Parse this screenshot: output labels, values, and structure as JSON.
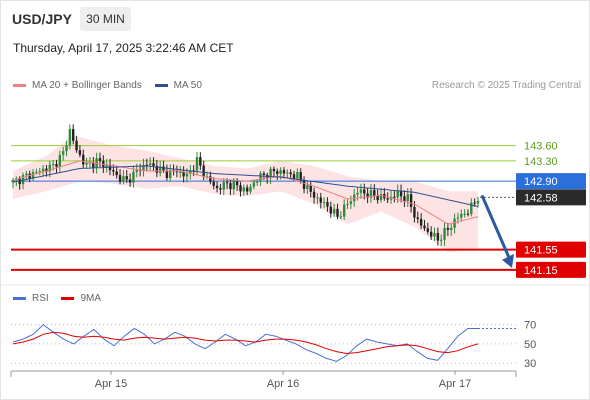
{
  "header": {
    "symbol": "USD/JPY",
    "timeframe": "30 MIN",
    "datetime": "Thursday, April 17, 2025 3:22:46 AM CET"
  },
  "legend": {
    "ma20": "MA 20 + Bollinger Bands",
    "ma50": "MA 50",
    "attribution": "Research © 2025 Trading Central"
  },
  "rsi_legend": {
    "rsi": "RSI",
    "ma9": "9MA"
  },
  "colors": {
    "ma20": "#f08080",
    "ma50": "#2b4f8f",
    "band_fill": "#fde3e3",
    "candle_up": "#2e8b3a",
    "candle_down": "#222222",
    "resistance_lines": "#9acd32",
    "pivot_line": "#2a6fdb",
    "support_lines": "#e00000",
    "rsi_line": "#4a6fd8",
    "rsi_ma": "#e00000",
    "arrow": "#2b5aa0"
  },
  "chart_data": [
    {
      "type": "candlestick",
      "title": "USD/JPY 30 MIN",
      "x_ticks": [
        "Apr 15",
        "Apr 16",
        "Apr 17"
      ],
      "ylim": [
        140.95,
        144.5
      ],
      "levels": [
        {
          "value": 143.6,
          "label": "143.60",
          "kind": "resistance"
        },
        {
          "value": 143.3,
          "label": "143.30",
          "kind": "resistance"
        },
        {
          "value": 142.9,
          "label": "142.90",
          "kind": "pivot"
        },
        {
          "value": 141.55,
          "label": "141.55",
          "kind": "support"
        },
        {
          "value": 141.15,
          "label": "141.15",
          "kind": "support"
        }
      ],
      "last_price": {
        "value": 142.58,
        "label": "142.58"
      },
      "forecast": {
        "from": 142.58,
        "to": 141.15,
        "direction": "down"
      },
      "close_path": [
        [
          0,
          142.88
        ],
        [
          4,
          143.0
        ],
        [
          8,
          143.1
        ],
        [
          12,
          143.2
        ],
        [
          15,
          143.45
        ],
        [
          17,
          143.9
        ],
        [
          19,
          143.5
        ],
        [
          22,
          143.2
        ],
        [
          25,
          143.3
        ],
        [
          28,
          143.2
        ],
        [
          31,
          143.0
        ],
        [
          34,
          142.9
        ],
        [
          37,
          143.1
        ],
        [
          40,
          143.25
        ],
        [
          43,
          143.15
        ],
        [
          46,
          143.05
        ],
        [
          49,
          143.1
        ],
        [
          52,
          143.0
        ],
        [
          55,
          143.3
        ],
        [
          58,
          142.95
        ],
        [
          61,
          142.75
        ],
        [
          64,
          142.85
        ],
        [
          67,
          142.8
        ],
        [
          70,
          142.7
        ],
        [
          73,
          142.95
        ],
        [
          76,
          143.05
        ],
        [
          79,
          143.1
        ],
        [
          82,
          143.05
        ],
        [
          85,
          143.0
        ],
        [
          88,
          142.75
        ],
        [
          91,
          142.55
        ],
        [
          94,
          142.4
        ],
        [
          97,
          142.2
        ],
        [
          100,
          142.45
        ],
        [
          103,
          142.7
        ],
        [
          106,
          142.65
        ],
        [
          109,
          142.6
        ],
        [
          112,
          142.55
        ],
        [
          115,
          142.65
        ],
        [
          118,
          142.55
        ],
        [
          121,
          142.1
        ],
        [
          124,
          141.9
        ],
        [
          127,
          141.75
        ],
        [
          130,
          141.95
        ],
        [
          133,
          142.2
        ],
        [
          136,
          142.3
        ],
        [
          139,
          142.58
        ]
      ],
      "ma20_path": [
        [
          0,
          142.92
        ],
        [
          10,
          143.1
        ],
        [
          20,
          143.3
        ],
        [
          30,
          143.2
        ],
        [
          40,
          143.1
        ],
        [
          50,
          143.1
        ],
        [
          60,
          142.95
        ],
        [
          70,
          142.9
        ],
        [
          80,
          143.0
        ],
        [
          90,
          142.8
        ],
        [
          100,
          142.55
        ],
        [
          110,
          142.62
        ],
        [
          120,
          142.45
        ],
        [
          130,
          142.05
        ],
        [
          139,
          142.2
        ]
      ],
      "ma50_path": [
        [
          0,
          142.88
        ],
        [
          20,
          143.15
        ],
        [
          40,
          143.2
        ],
        [
          60,
          143.05
        ],
        [
          80,
          142.98
        ],
        [
          100,
          142.8
        ],
        [
          120,
          142.68
        ],
        [
          139,
          142.4
        ]
      ],
      "band_upper": [
        [
          0,
          143.1
        ],
        [
          10,
          143.4
        ],
        [
          18,
          143.8
        ],
        [
          30,
          143.6
        ],
        [
          40,
          143.5
        ],
        [
          50,
          143.35
        ],
        [
          60,
          143.2
        ],
        [
          70,
          143.15
        ],
        [
          80,
          143.3
        ],
        [
          90,
          143.2
        ],
        [
          100,
          143.0
        ],
        [
          110,
          142.9
        ],
        [
          120,
          142.9
        ],
        [
          130,
          142.7
        ],
        [
          139,
          142.7
        ]
      ],
      "band_lower": [
        [
          0,
          142.55
        ],
        [
          10,
          142.7
        ],
        [
          20,
          142.9
        ],
        [
          30,
          142.85
        ],
        [
          40,
          142.75
        ],
        [
          50,
          142.8
        ],
        [
          60,
          142.65
        ],
        [
          70,
          142.6
        ],
        [
          80,
          142.7
        ],
        [
          90,
          142.45
        ],
        [
          100,
          142.05
        ],
        [
          110,
          142.3
        ],
        [
          120,
          142.0
        ],
        [
          130,
          141.5
        ],
        [
          139,
          141.55
        ]
      ]
    },
    {
      "type": "line",
      "title": "RSI",
      "series": [
        {
          "name": "RSI",
          "values": [
            52,
            55,
            60,
            70,
            62,
            55,
            50,
            58,
            65,
            55,
            48,
            58,
            66,
            60,
            50,
            55,
            62,
            58,
            50,
            45,
            52,
            60,
            55,
            48,
            52,
            60,
            58,
            54,
            50,
            44,
            40,
            35,
            32,
            38,
            48,
            55,
            52,
            50,
            48,
            50,
            42,
            35,
            33,
            45,
            58,
            66,
            66
          ]
        },
        {
          "name": "9MA",
          "values": [
            50,
            52,
            55,
            60,
            62,
            61,
            58,
            57,
            58,
            57,
            55,
            54,
            56,
            57,
            56,
            55,
            56,
            57,
            56,
            54,
            53,
            54,
            54,
            53,
            52,
            54,
            55,
            55,
            54,
            52,
            49,
            45,
            42,
            40,
            41,
            43,
            45,
            47,
            48,
            49,
            48,
            45,
            42,
            41,
            43,
            47,
            50
          ]
        }
      ],
      "y_ticks": [
        30,
        50,
        70
      ],
      "ylim": [
        25,
        80
      ]
    }
  ]
}
